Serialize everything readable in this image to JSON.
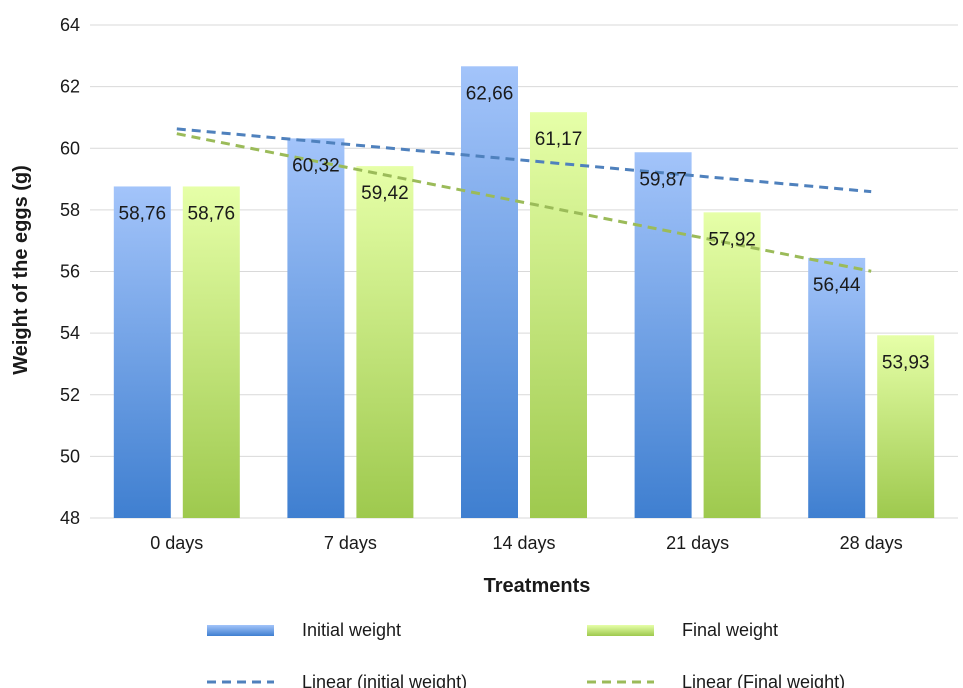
{
  "chart_data": {
    "type": "bar",
    "categories": [
      "0 days",
      "7 days",
      "14 days",
      "21 days",
      "28 days"
    ],
    "series": [
      {
        "name": "Initial weight",
        "values": [
          58.76,
          60.32,
          62.66,
          59.87,
          56.44
        ],
        "labels": [
          "58,76",
          "60,32",
          "62,66",
          "59,87",
          "56,44"
        ],
        "color_top": "#a3c4fa",
        "color_bottom": "#3f7fd0"
      },
      {
        "name": "Final weight",
        "values": [
          58.76,
          59.42,
          61.17,
          57.92,
          53.93
        ],
        "labels": [
          "58,76",
          "59,42",
          "61,17",
          "57,92",
          "53,93"
        ],
        "color_top": "#e6ffa8",
        "color_bottom": "#9ec94e"
      }
    ],
    "trendlines": [
      {
        "name": "Linear (initial weight)",
        "of_series": 0,
        "color": "#4f81bd"
      },
      {
        "name": "Linear (Final weight)",
        "of_series": 1,
        "color": "#9bbb59"
      }
    ],
    "xlabel": "Treatments",
    "ylabel": "Weight of the eggs (g)",
    "ylim": [
      48,
      64
    ],
    "yticks": [
      "48",
      "50",
      "52",
      "54",
      "56",
      "58",
      "60",
      "62",
      "64"
    ],
    "grid": true,
    "legend_position": "bottom"
  }
}
